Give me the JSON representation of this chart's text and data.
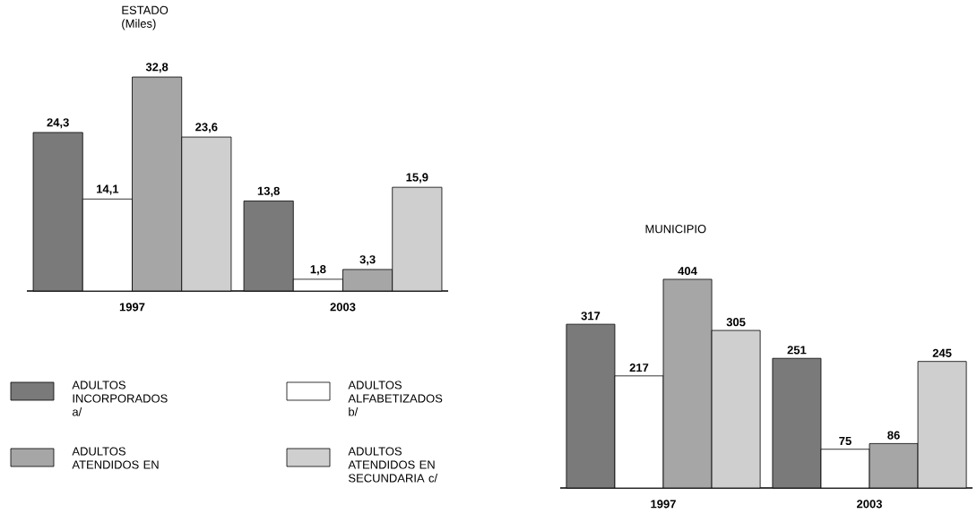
{
  "chart_data": [
    {
      "type": "bar",
      "title": "ESTADO",
      "subtitle": "(Miles)",
      "categories": [
        "1997",
        "2003"
      ],
      "legend": "bottom",
      "series": [
        {
          "name": "ADULTOS INCORPORADOS a/",
          "color": "#7a7a7a",
          "values": [
            24.3,
            13.8
          ],
          "value_labels": [
            "24,3",
            "13,8"
          ]
        },
        {
          "name": "ADULTOS ALFABETIZADOS b/",
          "color": "#ffffff",
          "values": [
            14.1,
            1.8
          ],
          "value_labels": [
            "14,1",
            "1,8"
          ]
        },
        {
          "name": "ADULTOS ATENDIDOS EN",
          "color": "#a6a6a6",
          "values": [
            32.8,
            3.3
          ],
          "value_labels": [
            "32,8",
            "3,3"
          ]
        },
        {
          "name": "ADULTOS ATENDIDOS EN SECUNDARIA c/",
          "color": "#cfcfcf",
          "values": [
            23.6,
            15.9
          ],
          "value_labels": [
            "23,6",
            "15,9"
          ]
        }
      ]
    },
    {
      "type": "bar",
      "title": "MUNICIPIO",
      "categories": [
        "1997",
        "2003"
      ],
      "series": [
        {
          "color": "#7a7a7a",
          "values": [
            317,
            251
          ],
          "value_labels": [
            "317",
            "251"
          ]
        },
        {
          "color": "#ffffff",
          "values": [
            217,
            75
          ],
          "value_labels": [
            "217",
            "75"
          ]
        },
        {
          "color": "#a6a6a6",
          "values": [
            404,
            86
          ],
          "value_labels": [
            "404",
            "86"
          ]
        },
        {
          "color": "#cfcfcf",
          "values": [
            305,
            245
          ],
          "value_labels": [
            "305",
            "245"
          ]
        }
      ]
    }
  ]
}
